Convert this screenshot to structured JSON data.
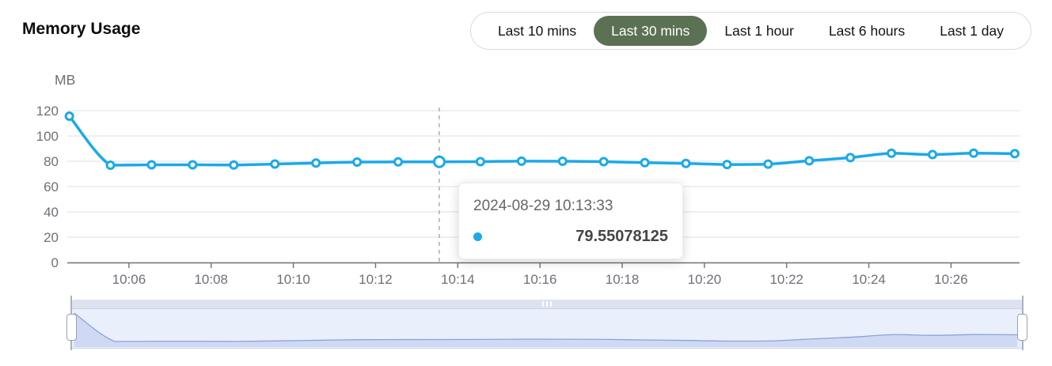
{
  "header": {
    "title": "Memory Usage"
  },
  "time_range_selector": {
    "options": [
      {
        "label": "Last 10 mins",
        "selected": false
      },
      {
        "label": "Last 30 mins",
        "selected": true
      },
      {
        "label": "Last 1 hour",
        "selected": false
      },
      {
        "label": "Last 6 hours",
        "selected": false
      },
      {
        "label": "Last 1 day",
        "selected": false
      }
    ]
  },
  "tooltip": {
    "timestamp": "2024-08-29 10:13:33",
    "value": "79.55078125"
  },
  "colors": {
    "line": "#1ba9ea",
    "selected_button_bg": "#5b7153",
    "axis_text": "#6e7079",
    "axis_line": "#6e7079",
    "grid_line": "#e2e5ef",
    "axis_pointer": "#9aa0a8",
    "mini_line": "#8ca3db",
    "mini_fill": "#cfd9f3"
  },
  "chart_data": {
    "type": "line",
    "title": "Memory Usage",
    "xlabel": "",
    "ylabel": "MB",
    "ylim": [
      0,
      120
    ],
    "yticks": [
      0,
      20,
      40,
      60,
      80,
      100,
      120
    ],
    "xticks": [
      "10:06",
      "10:08",
      "10:10",
      "10:12",
      "10:14",
      "10:16",
      "10:18",
      "10:20",
      "10:22",
      "10:24",
      "10:26"
    ],
    "x_domain": [
      "10:04:30",
      "10:27:40"
    ],
    "grid": true,
    "smooth": true,
    "legend_position": "none",
    "x": [
      "10:04:33",
      "10:05:33",
      "10:06:33",
      "10:07:33",
      "10:08:33",
      "10:09:33",
      "10:10:33",
      "10:11:33",
      "10:12:33",
      "10:13:33",
      "10:14:33",
      "10:15:33",
      "10:16:33",
      "10:17:33",
      "10:18:33",
      "10:19:33",
      "10:20:33",
      "10:21:33",
      "10:22:33",
      "10:23:33",
      "10:24:33",
      "10:25:33",
      "10:26:33",
      "10:27:33"
    ],
    "values": [
      115.6,
      76.9,
      77.2,
      77.2,
      77.0,
      77.8,
      78.6,
      79.4,
      79.5,
      79.55078125,
      79.7,
      80.1,
      80.0,
      79.7,
      78.9,
      78.3,
      77.4,
      77.7,
      80.4,
      82.9,
      86.3,
      85.3,
      86.4,
      86.0
    ],
    "highlight_index": 9
  }
}
